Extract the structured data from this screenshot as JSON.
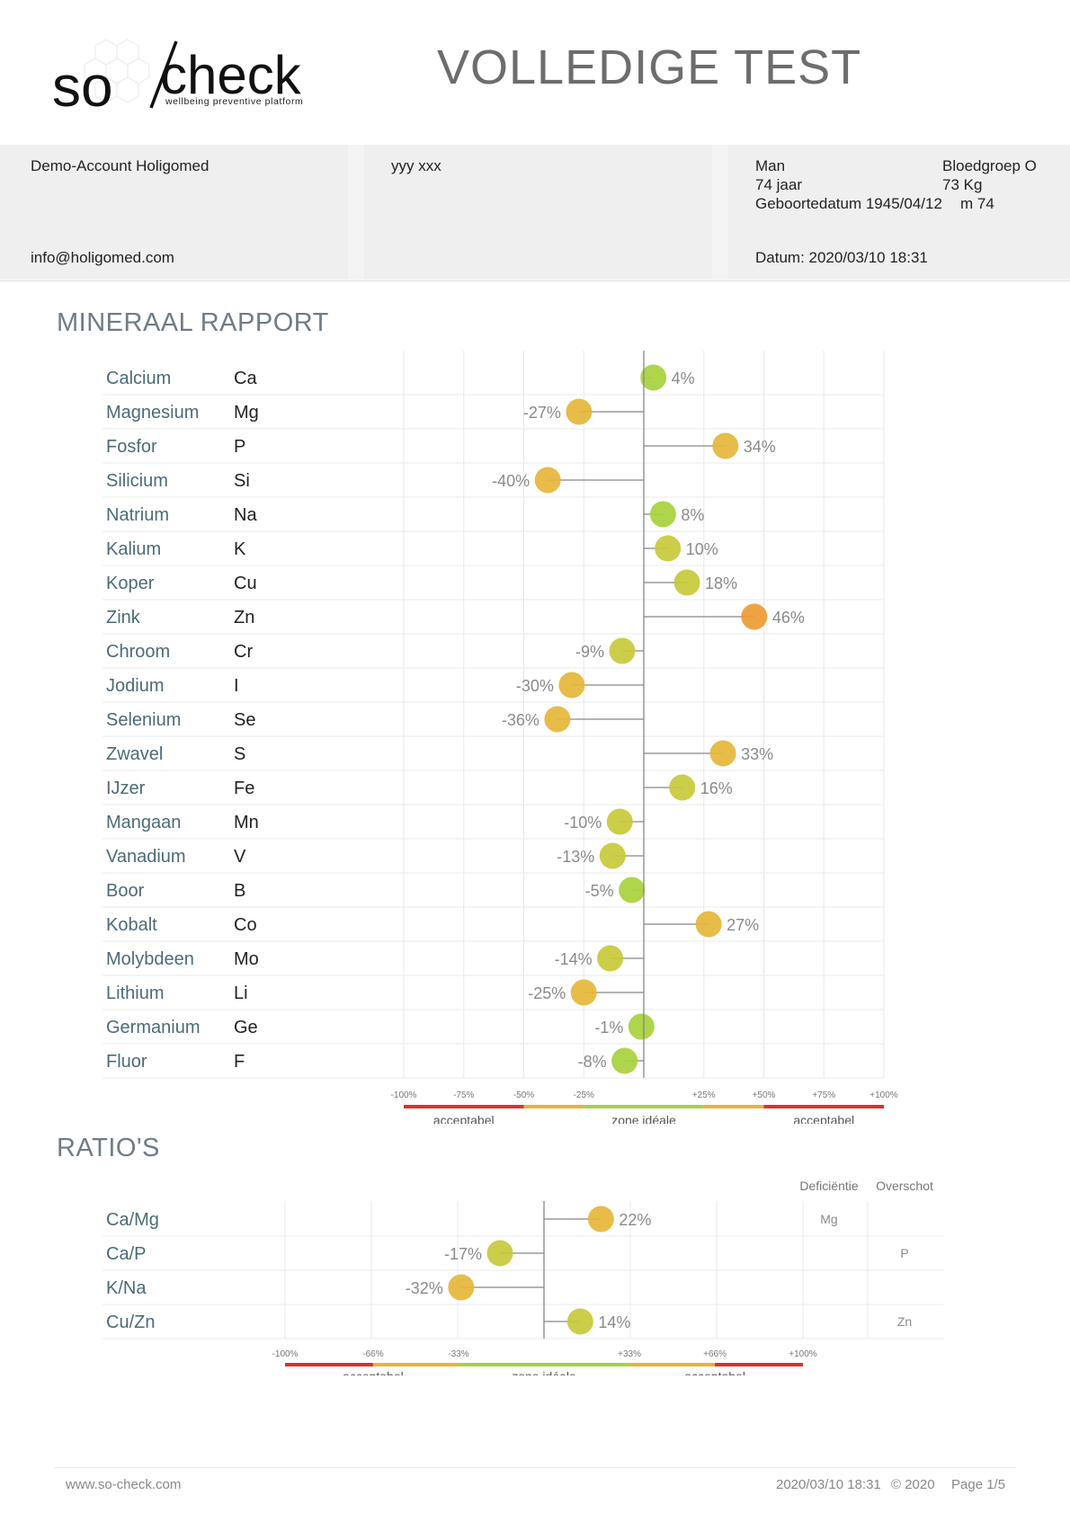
{
  "header": {
    "logo_text_so": "so",
    "logo_text_check": "check",
    "logo_tagline": "wellbeing preventive platform",
    "title": "VOLLEDIGE TEST"
  },
  "account": {
    "name": "Demo-Account Holigomed",
    "email": "info@holigomed.com"
  },
  "patient": {
    "name": "yyy xxx",
    "gender": "Man",
    "age": "74 jaar",
    "birthdate": "Geboortedatum 1945/04/12",
    "blood_group": "Bloedgroep O",
    "weight": "73 Kg",
    "height": "m 74",
    "date": "Datum: 2020/03/10 18:31"
  },
  "minerals": {
    "title": "MINERAAL RAPPORT",
    "scale_ticks": [
      "-100%",
      "-75%",
      "-50%",
      "-25%",
      "+25%",
      "+50%",
      "+75%",
      "+100%"
    ],
    "zone_labels": [
      "acceptabel",
      "zone idéale",
      "acceptabel"
    ]
  },
  "ratios": {
    "title": "RATIO'S",
    "col_deficiency": "Deficiëntie",
    "col_excess": "Overschot",
    "scale_ticks": [
      "-100%",
      "-66%",
      "-33%",
      "+33%",
      "+66%",
      "+100%"
    ],
    "zone_labels": [
      "acceptabel",
      "zone idéale",
      "acceptabel"
    ]
  },
  "chart_data": [
    {
      "type": "scatter",
      "title": "MINERAAL RAPPORT",
      "xlim": [
        -100,
        100
      ],
      "categories": [
        "Calcium",
        "Magnesium",
        "Fosfor",
        "Silicium",
        "Natrium",
        "Kalium",
        "Koper",
        "Zink",
        "Chroom",
        "Jodium",
        "Selenium",
        "Zwavel",
        "IJzer",
        "Mangaan",
        "Vanadium",
        "Boor",
        "Kobalt",
        "Molybdeen",
        "Lithium",
        "Germanium",
        "Fluor"
      ],
      "symbols": [
        "Ca",
        "Mg",
        "P",
        "Si",
        "Na",
        "K",
        "Cu",
        "Zn",
        "Cr",
        "I",
        "Se",
        "S",
        "Fe",
        "Mn",
        "V",
        "B",
        "Co",
        "Mo",
        "Li",
        "Ge",
        "F"
      ],
      "values": [
        4,
        -27,
        34,
        -40,
        8,
        10,
        18,
        46,
        -9,
        -30,
        -36,
        33,
        16,
        -10,
        -13,
        -5,
        27,
        -14,
        -25,
        -1,
        -8
      ],
      "labels": [
        "4%",
        "-27%",
        "34%",
        "-40%",
        "8%",
        "10%",
        "18%",
        "46%",
        "-9%",
        "-30%",
        "-36%",
        "33%",
        "16%",
        "-10%",
        "-13%",
        "-5%",
        "27%",
        "-14%",
        "-25%",
        "-1%",
        "-8%"
      ]
    },
    {
      "type": "scatter",
      "title": "RATIO'S",
      "xlim": [
        -100,
        100
      ],
      "categories": [
        "Ca/Mg",
        "Ca/P",
        "K/Na",
        "Cu/Zn"
      ],
      "values": [
        22,
        -17,
        -32,
        14
      ],
      "labels": [
        "22%",
        "-17%",
        "-32%",
        "14%"
      ],
      "deficiency": [
        "Mg",
        "",
        "",
        ""
      ],
      "excess": [
        "",
        "P",
        "",
        "Zn"
      ]
    }
  ],
  "colors": {
    "green": "#a7d13c",
    "yellow_green": "#c8c93a",
    "yellow": "#e5b63a",
    "orange": "#ee9a33",
    "zone_red": "#d9322c",
    "zone_orange": "#e9b23a",
    "zone_green": "#a5d145"
  },
  "footer": {
    "website": "www.so-check.com",
    "datetime": "2020/03/10 18:31",
    "copyright": "© 2020",
    "page": "Page 1/5"
  }
}
